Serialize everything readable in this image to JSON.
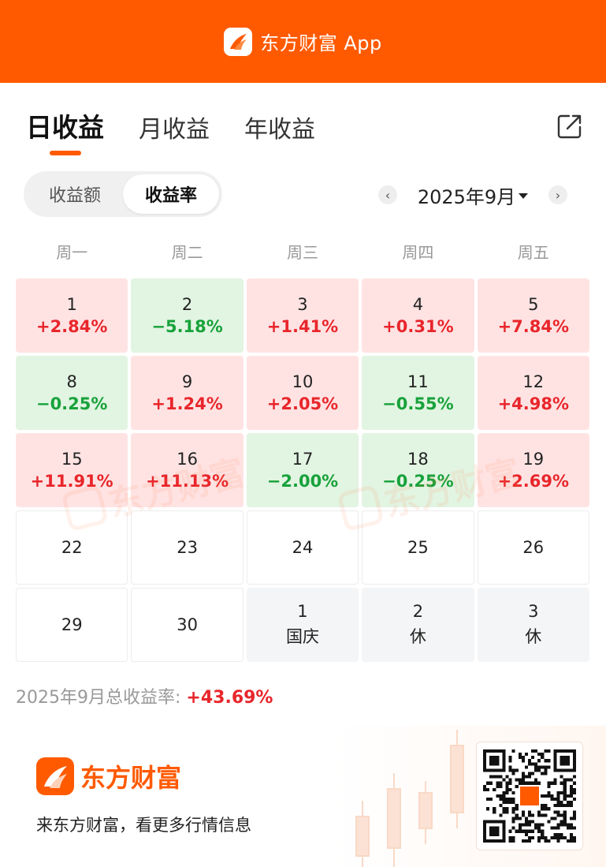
{
  "header": {
    "title": "东方财富 App",
    "logo_icon": "eastmoney-logo-icon",
    "bg_color": "#ff5a00"
  },
  "tabs": [
    {
      "label": "日收益",
      "active": true
    },
    {
      "label": "月收益",
      "active": false
    },
    {
      "label": "年收益",
      "active": false
    }
  ],
  "share_icon": "share-icon",
  "segment": [
    {
      "label": "收益额",
      "active": false
    },
    {
      "label": "收益率",
      "active": true
    }
  ],
  "month_nav": {
    "prev_icon": "chevron-left-icon",
    "label": "2025年9月",
    "next_icon": "chevron-right-icon",
    "dropdown_icon": "caret-down-icon"
  },
  "weekdays": [
    "周一",
    "周二",
    "周三",
    "周四",
    "周五"
  ],
  "calendar": [
    {
      "day": "1",
      "value": "+2.84%",
      "state": "up"
    },
    {
      "day": "2",
      "value": "−5.18%",
      "state": "down"
    },
    {
      "day": "3",
      "value": "+1.41%",
      "state": "up"
    },
    {
      "day": "4",
      "value": "+0.31%",
      "state": "up"
    },
    {
      "day": "5",
      "value": "+7.84%",
      "state": "up"
    },
    {
      "day": "8",
      "value": "−0.25%",
      "state": "down"
    },
    {
      "day": "9",
      "value": "+1.24%",
      "state": "up"
    },
    {
      "day": "10",
      "value": "+2.05%",
      "state": "up"
    },
    {
      "day": "11",
      "value": "−0.55%",
      "state": "down"
    },
    {
      "day": "12",
      "value": "+4.98%",
      "state": "up"
    },
    {
      "day": "15",
      "value": "+11.91%",
      "state": "up"
    },
    {
      "day": "16",
      "value": "+11.13%",
      "state": "up"
    },
    {
      "day": "17",
      "value": "−2.00%",
      "state": "down"
    },
    {
      "day": "18",
      "value": "−0.25%",
      "state": "down"
    },
    {
      "day": "19",
      "value": "+2.69%",
      "state": "up"
    },
    {
      "day": "22",
      "value": "",
      "state": "empty"
    },
    {
      "day": "23",
      "value": "",
      "state": "empty"
    },
    {
      "day": "24",
      "value": "",
      "state": "empty"
    },
    {
      "day": "25",
      "value": "",
      "state": "empty"
    },
    {
      "day": "26",
      "value": "",
      "state": "empty"
    },
    {
      "day": "29",
      "value": "",
      "state": "empty"
    },
    {
      "day": "30",
      "value": "",
      "state": "empty"
    },
    {
      "day": "1",
      "value": "",
      "note": "国庆",
      "state": "holiday"
    },
    {
      "day": "2",
      "value": "",
      "note": "休",
      "state": "holiday"
    },
    {
      "day": "3",
      "value": "",
      "note": "休",
      "state": "holiday"
    }
  ],
  "colors": {
    "up": "#e8262b",
    "down": "#17a23a",
    "accent": "#ff5a00"
  },
  "watermark": "东方财富",
  "total": {
    "label": "2025年9月总收益率:",
    "value": "+43.69%"
  },
  "footer": {
    "brand": "东方财富",
    "slogan": "来东方财富，看更多行情信息",
    "qr_icon": "qr-code-icon"
  }
}
